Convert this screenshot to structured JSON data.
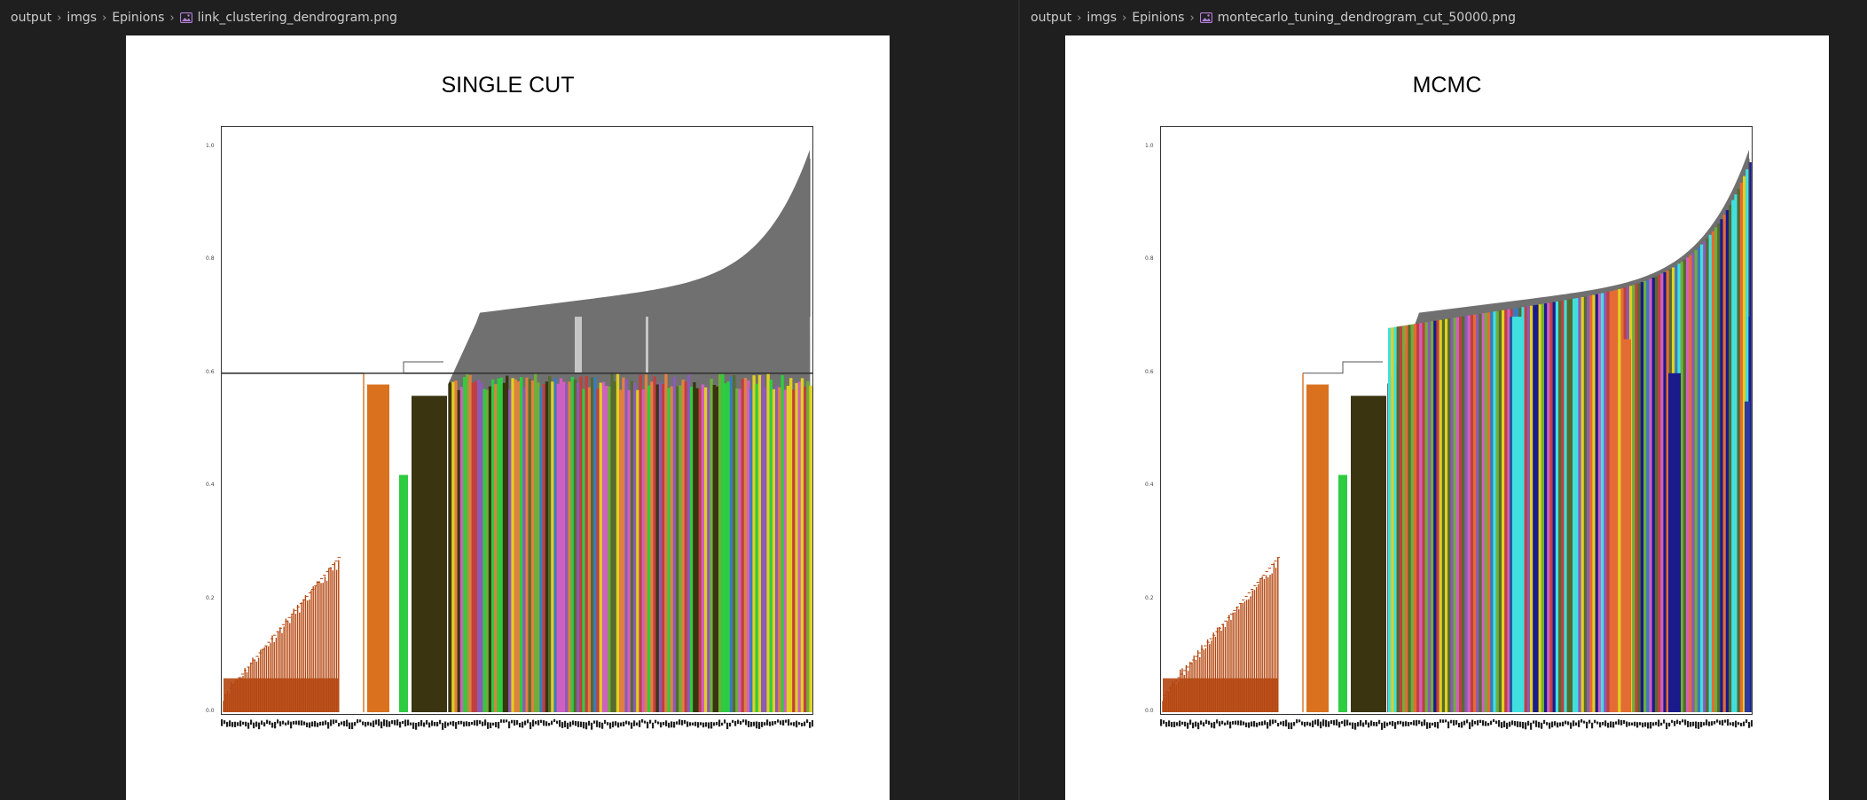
{
  "left_pane": {
    "breadcrumb": [
      "output",
      "imgs",
      "Epinions"
    ],
    "file_name": "link_clustering_dendrogram.png",
    "file_icon": "image-file-icon",
    "chart_title": "SINGLE CUT"
  },
  "right_pane": {
    "breadcrumb": [
      "output",
      "imgs",
      "Epinions"
    ],
    "file_name": "montecarlo_tuning_dendrogram_cut_50000.png",
    "file_icon": "image-file-icon",
    "chart_title": "MCMC"
  },
  "chart_data": [
    {
      "type": "dendrogram",
      "title": "SINGLE CUT",
      "ylim": [
        0,
        1.0
      ],
      "y_ticks": [
        "0.0",
        "0.2",
        "0.4",
        "0.6",
        "0.8",
        "1.0"
      ],
      "cut_height": 0.6,
      "grid": false,
      "colors": [
        "#b5460f",
        "#d9711f",
        "#2ecc40",
        "#3a3410",
        "#777777"
      ]
    },
    {
      "type": "dendrogram",
      "title": "MCMC",
      "ylim": [
        0,
        1.0
      ],
      "y_ticks": [
        "0.0",
        "0.2",
        "0.4",
        "0.6",
        "0.8",
        "1.0"
      ],
      "grid": false,
      "colors": [
        "#b5460f",
        "#d9711f",
        "#2ecc40",
        "#3a3410",
        "#40e0e0",
        "#e56b34",
        "#1a1a8c",
        "#777777"
      ]
    }
  ]
}
